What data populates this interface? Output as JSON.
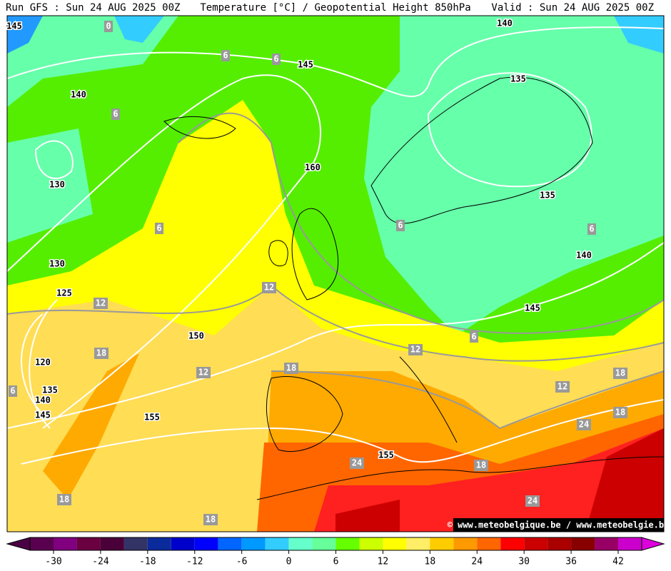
{
  "header": {
    "left": "Run GFS : Sun 24 AUG 2025 00Z",
    "center": "Temperature [°C] / Geopotential Height 850hPa",
    "right": "Valid : Sun 24 AUG 2025 00Z"
  },
  "contour_labels": [
    145,
    0,
    6,
    6,
    145,
    140,
    135,
    140,
    6,
    130,
    160,
    6,
    135,
    6,
    6,
    140,
    130,
    125,
    12,
    12,
    145,
    150,
    6,
    18,
    12,
    120,
    18,
    12,
    18,
    6,
    135,
    12,
    140,
    145,
    155,
    18,
    24,
    155,
    24,
    18,
    18,
    24,
    18
  ],
  "watermark": "© www.meteobelgique.be / www.meteobelgie.be",
  "colorbar": {
    "ticks": [
      -30,
      -24,
      -18,
      -12,
      -6,
      0,
      6,
      12,
      18,
      24,
      30,
      36,
      42
    ],
    "colors": [
      "#4a0044",
      "#5a0050",
      "#800080",
      "#6a0040",
      "#4a0038",
      "#333366",
      "#0b2b9c",
      "#0000cc",
      "#0000ff",
      "#0066ff",
      "#0099ff",
      "#33ccff",
      "#66ffcc",
      "#66ff99",
      "#66ff00",
      "#ccff00",
      "#ffff00",
      "#ffee66",
      "#ffcc00",
      "#ff9900",
      "#ff6600",
      "#ff0000",
      "#cc0000",
      "#aa0000",
      "#880000",
      "#990066",
      "#cc00cc",
      "#dd00dd"
    ]
  }
}
